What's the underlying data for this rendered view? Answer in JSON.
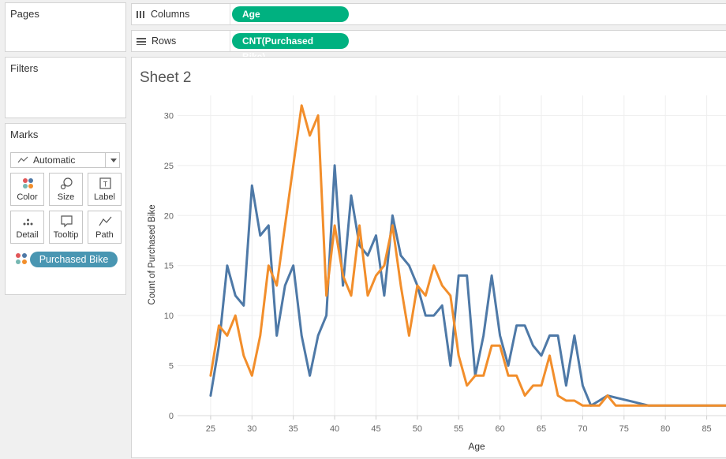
{
  "left_panel": {
    "pages_title": "Pages",
    "filters_title": "Filters",
    "marks_title": "Marks",
    "mark_type": "Automatic",
    "mark_buttons": [
      {
        "label": "Color",
        "icon": "color-dots-icon"
      },
      {
        "label": "Size",
        "icon": "size-icon"
      },
      {
        "label": "Label",
        "icon": "label-icon"
      },
      {
        "label": "Detail",
        "icon": "detail-icon"
      },
      {
        "label": "Tooltip",
        "icon": "tooltip-icon"
      },
      {
        "label": "Path",
        "icon": "path-icon"
      }
    ],
    "color_field": "Purchased Bike"
  },
  "shelves": {
    "columns_label": "Columns",
    "columns_pill": "Age",
    "rows_label": "Rows",
    "rows_pill": "CNT(Purchased Bike)",
    "pill_color": "#00b180"
  },
  "sheet": {
    "title": "Sheet 2"
  },
  "chart_data": {
    "type": "line",
    "xlabel": "Age",
    "ylabel": "Count of Purchased Bike",
    "xlim": [
      21,
      88
    ],
    "ylim": [
      0,
      32
    ],
    "xticks": [
      25,
      30,
      35,
      40,
      45,
      50,
      55,
      60,
      65,
      70,
      75,
      80,
      85
    ],
    "yticks": [
      0,
      5,
      10,
      15,
      20,
      25,
      30
    ],
    "grid": true,
    "series": [
      {
        "color": "#4e79a7",
        "x": [
          25,
          26,
          27,
          28,
          29,
          30,
          31,
          32,
          33,
          34,
          35,
          36,
          37,
          38,
          39,
          40,
          41,
          42,
          43,
          44,
          45,
          46,
          47,
          48,
          49,
          50,
          51,
          52,
          53,
          54,
          55,
          56,
          57,
          58,
          59,
          60,
          61,
          62,
          63,
          64,
          65,
          66,
          67,
          68,
          69,
          70,
          71,
          72,
          73,
          74,
          75,
          76,
          77,
          78,
          80,
          85,
          88
        ],
        "y": [
          2,
          7,
          15,
          12,
          11,
          23,
          18,
          19,
          8,
          13,
          15,
          8,
          4,
          8,
          10,
          25,
          13,
          22,
          17,
          16,
          18,
          12,
          20,
          16,
          15,
          13,
          10,
          10,
          11,
          5,
          14,
          14,
          4,
          8,
          14,
          8,
          5,
          9,
          9,
          7,
          6,
          8,
          8,
          3,
          8,
          3,
          1,
          1.5,
          2,
          1.8,
          1.6,
          1.4,
          1.2,
          1,
          1,
          1,
          1
        ]
      },
      {
        "color": "#f28e2b",
        "x": [
          25,
          26,
          27,
          28,
          29,
          30,
          31,
          32,
          33,
          34,
          35,
          36,
          37,
          38,
          39,
          40,
          41,
          42,
          43,
          44,
          45,
          46,
          47,
          48,
          49,
          50,
          51,
          52,
          53,
          54,
          55,
          56,
          57,
          58,
          59,
          60,
          61,
          62,
          63,
          64,
          65,
          66,
          67,
          68,
          69,
          70,
          71,
          72,
          73,
          74,
          75,
          76,
          77,
          78,
          80,
          85,
          88
        ],
        "y": [
          4,
          9,
          8,
          10,
          6,
          4,
          8,
          15,
          13,
          19,
          25,
          31,
          28,
          30,
          12,
          19,
          14,
          12,
          19,
          12,
          14,
          15,
          19,
          13,
          8,
          13,
          12,
          15,
          13,
          12,
          6,
          3,
          4,
          4,
          7,
          7,
          4,
          4,
          2,
          3,
          3,
          6,
          2,
          1.5,
          1.5,
          1,
          1,
          1,
          2,
          1,
          1,
          1,
          1,
          1,
          1,
          1,
          1
        ]
      }
    ]
  }
}
